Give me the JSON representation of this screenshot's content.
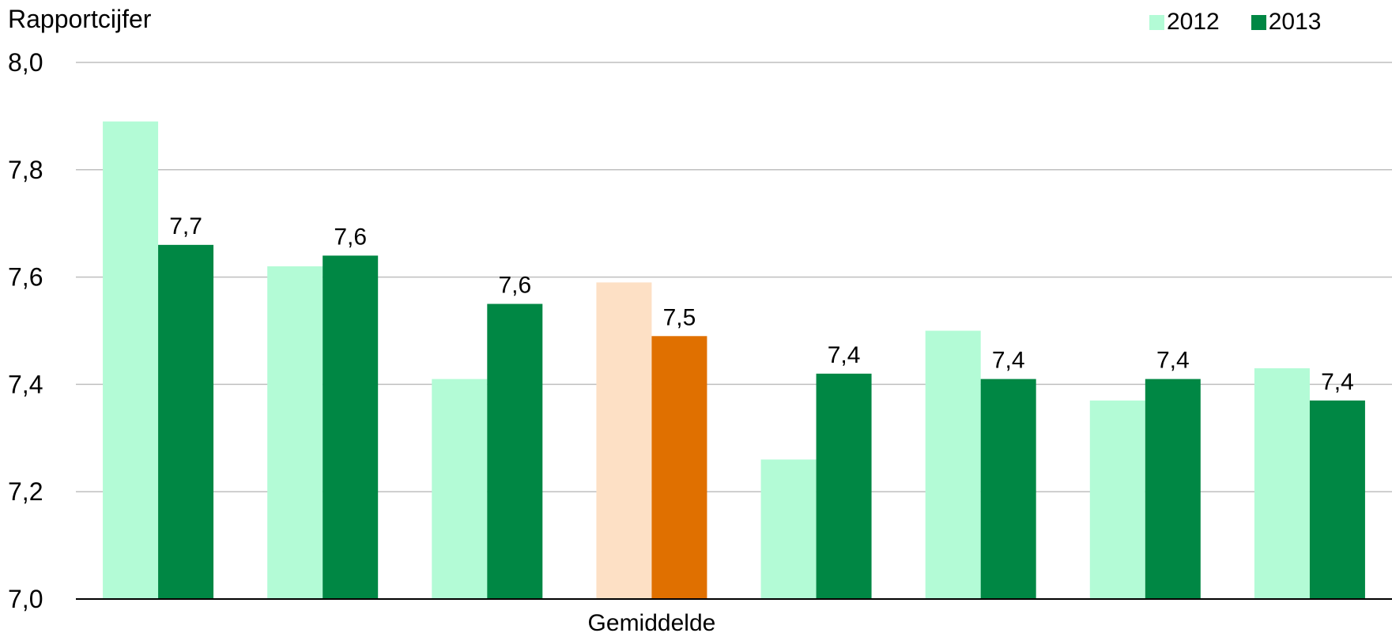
{
  "chart_data": {
    "type": "bar",
    "ylabel": "Rapportcijfer",
    "xlabel": "",
    "ylim": [
      7.0,
      8.0
    ],
    "yticks": [
      "7,0",
      "7,2",
      "7,4",
      "7,6",
      "7,8",
      "8,0"
    ],
    "ytick_values": [
      7.0,
      7.2,
      7.4,
      7.6,
      7.8,
      8.0
    ],
    "grid": true,
    "legend_position": "top-right",
    "categories": [
      "",
      "",
      "",
      "Gemiddelde",
      "",
      "",
      "",
      ""
    ],
    "highlight_index": 3,
    "series": [
      {
        "name": "2012",
        "color": "#b3fbd6",
        "highlight_color": "#fde0c5",
        "values": [
          7.89,
          7.62,
          7.41,
          7.59,
          7.26,
          7.5,
          7.37,
          7.43
        ]
      },
      {
        "name": "2013",
        "color": "#008744",
        "highlight_color": "#e07000",
        "values": [
          7.66,
          7.64,
          7.55,
          7.49,
          7.42,
          7.41,
          7.41,
          7.37
        ],
        "data_labels": [
          "7,7",
          "7,6",
          "7,6",
          "7,5",
          "7,4",
          "7,4",
          "7,4",
          "7,4"
        ]
      }
    ]
  }
}
